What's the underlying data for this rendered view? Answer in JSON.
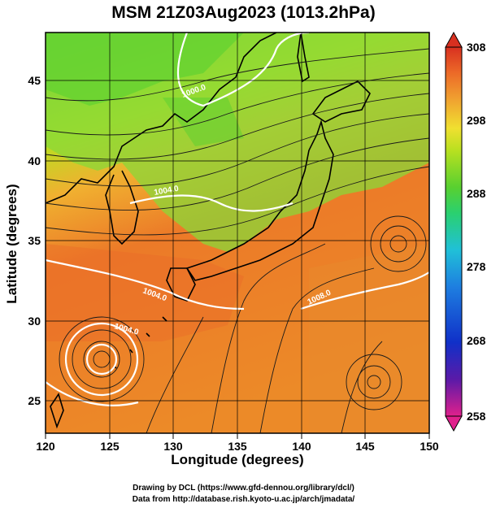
{
  "title": "MSM 21Z03Aug2023 (1013.2hPa)",
  "x_axis": {
    "label": "Longitude (degrees)",
    "range": [
      120,
      150
    ],
    "ticks": [
      "120",
      "125",
      "130",
      "135",
      "140",
      "145",
      "150"
    ]
  },
  "y_axis": {
    "label": "Latitude  (degrees)",
    "range": [
      22.5,
      47.5
    ],
    "ticks": [
      "25",
      "30",
      "35",
      "40",
      "45"
    ]
  },
  "colorbar": {
    "range": [
      258,
      308
    ],
    "ticks": [
      "308",
      "298",
      "288",
      "278",
      "268",
      "258"
    ],
    "colors": [
      "#e0208c",
      "#5a1aa8",
      "#1030c8",
      "#1e7ee0",
      "#20c0d8",
      "#2ad070",
      "#58d030",
      "#b8e020",
      "#f0e030",
      "#f0a030",
      "#ec6a28",
      "#d83020"
    ]
  },
  "contour_labels": [
    "1000.0",
    "1004.0",
    "1004.0",
    "1004.0",
    "1008.0"
  ],
  "credits": [
    "Drawing by DCL (https://www.gfd-dennou.org/library/dcl/)",
    "Data from http://database.rish.kyoto-u.ac.jp/arch/jmadata/"
  ],
  "colors": {
    "land_outline": "#000000",
    "contour": "#ffffff",
    "warm": "#ec7a28",
    "cool": "#6ad040"
  }
}
